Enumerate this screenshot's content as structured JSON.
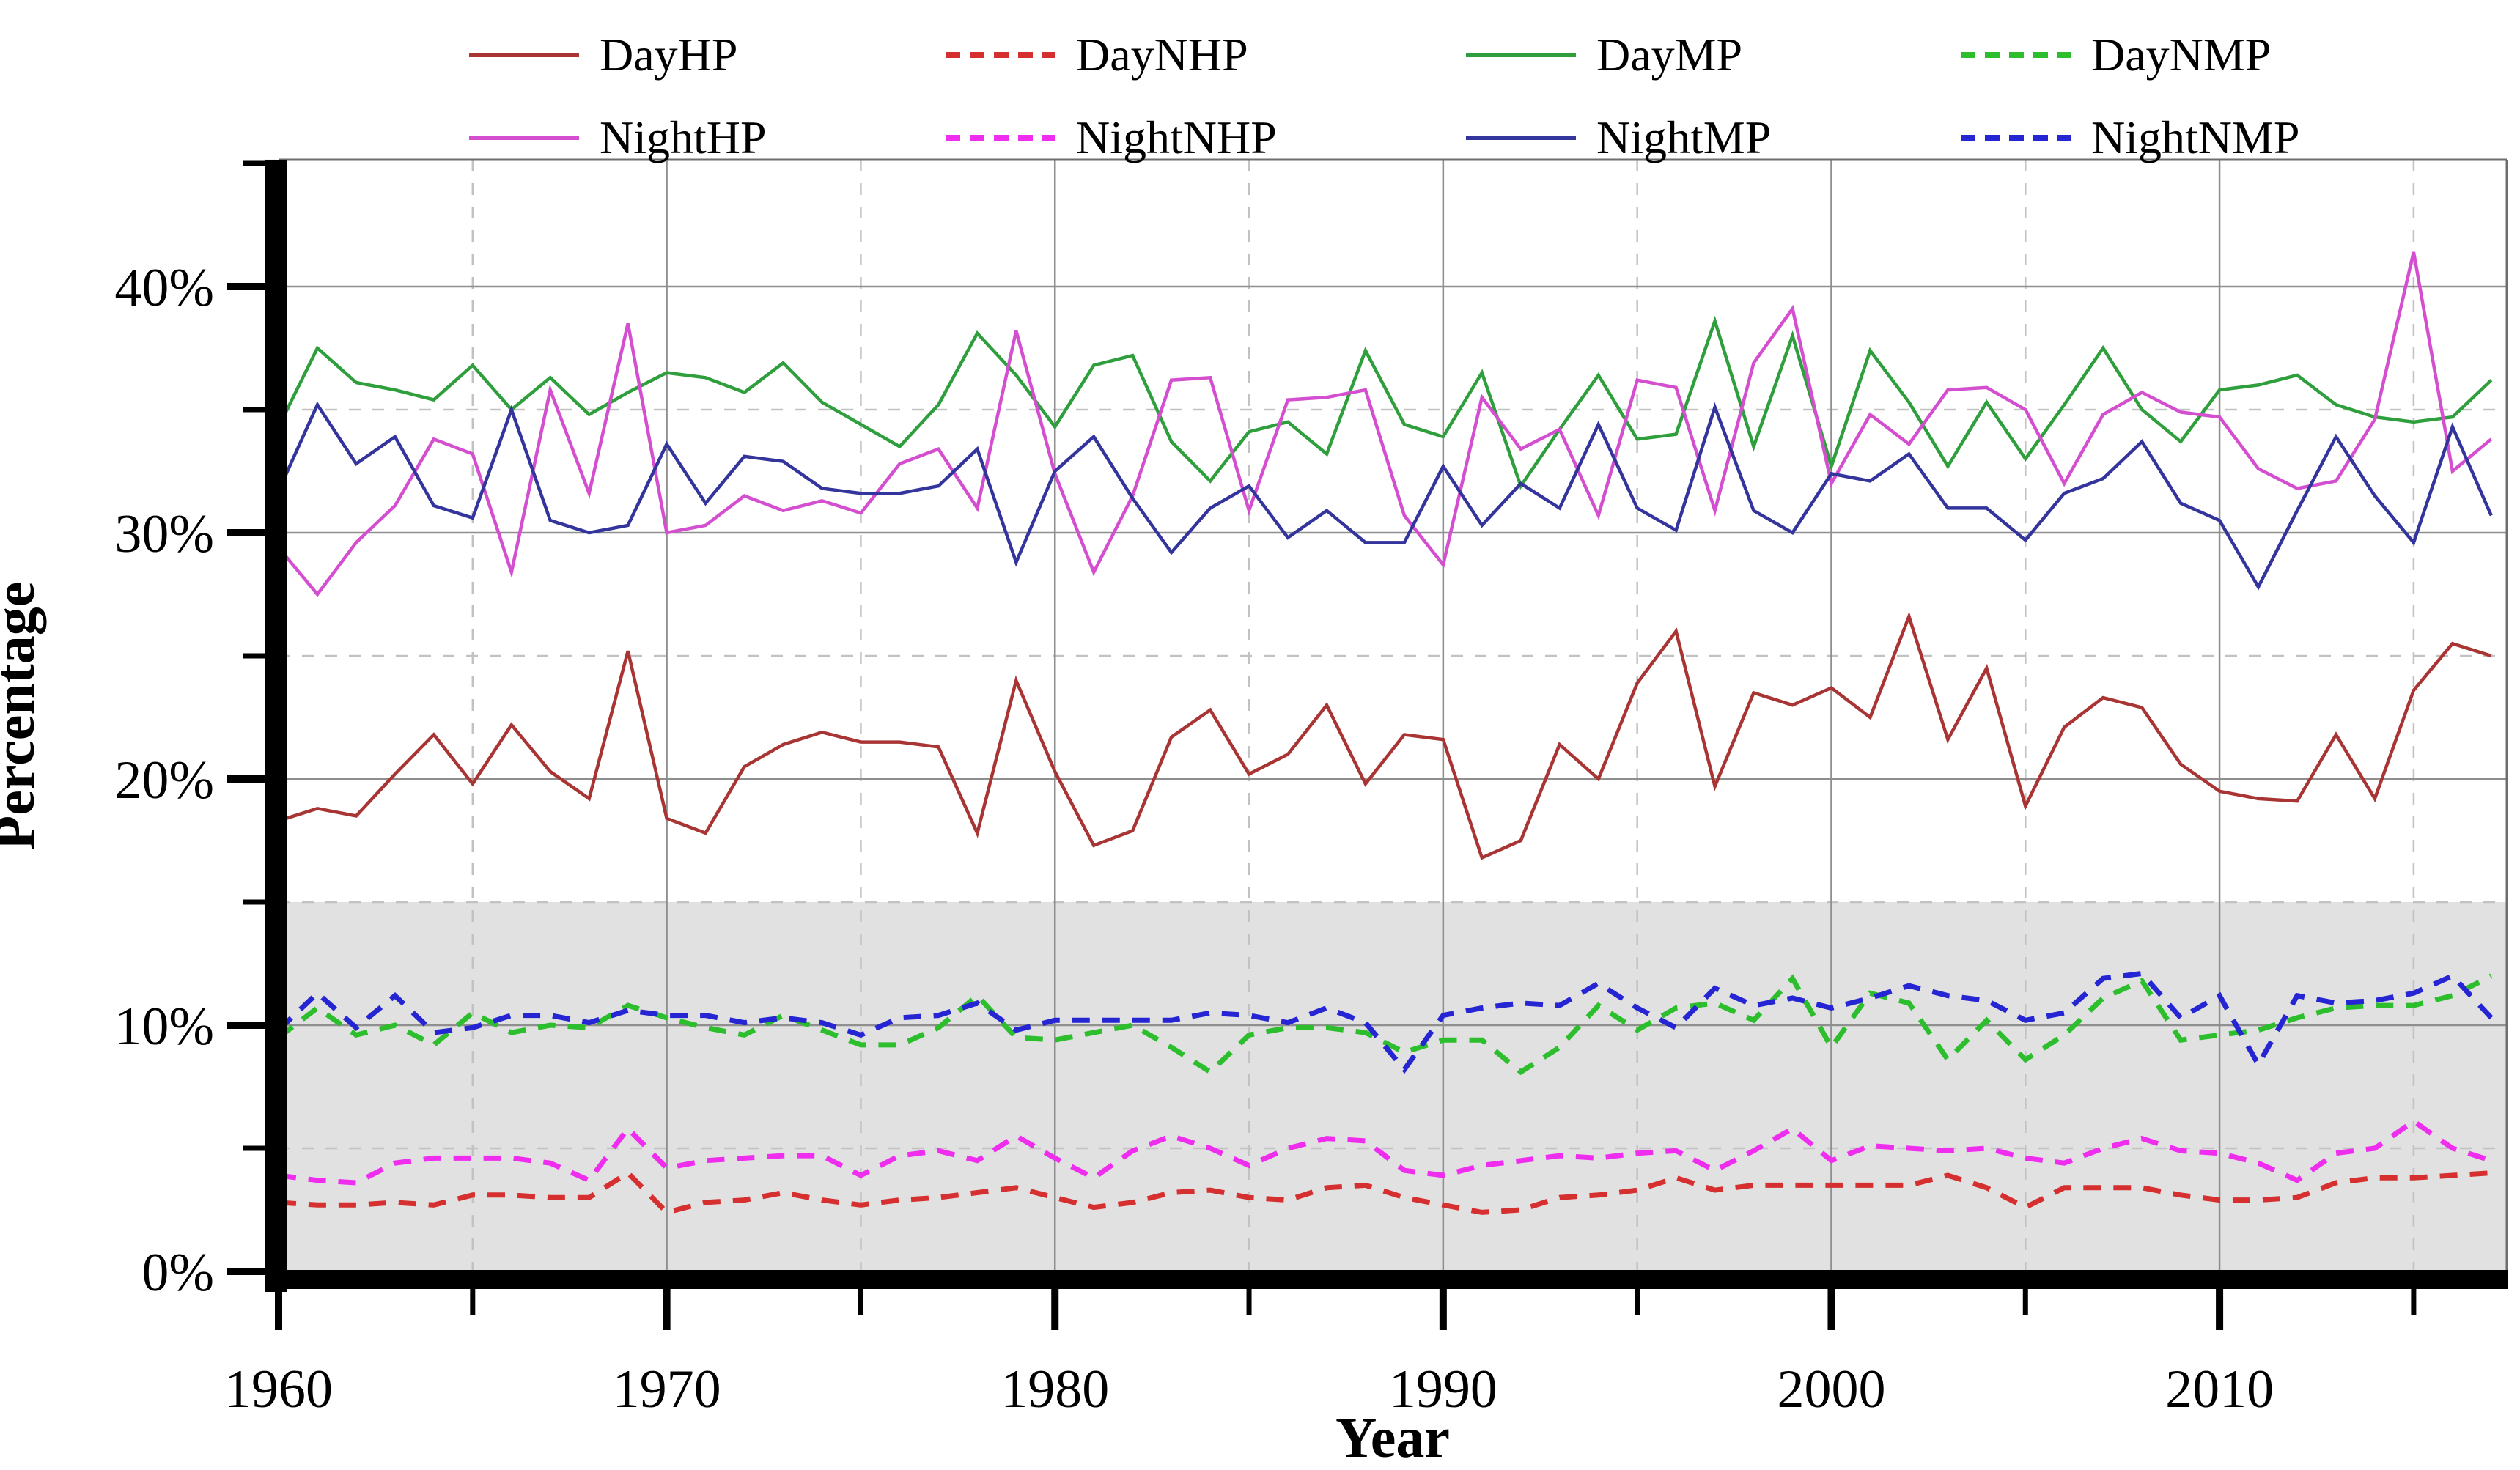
{
  "chart_data": {
    "type": "line",
    "title": "",
    "xlabel": "Year",
    "ylabel": "Percentage",
    "xlim": [
      1960,
      2017.4
    ],
    "ylim": [
      0,
      45.15
    ],
    "grid": {
      "major_horizontal": [
        10,
        20,
        30,
        40
      ],
      "minor_horizontal": [
        5,
        15,
        25,
        35
      ],
      "major_vertical": [
        1970,
        1980,
        1990,
        2000,
        2010
      ],
      "minor_vertical": [
        1965,
        1975,
        1985,
        1995,
        2005,
        2015
      ],
      "major_color": "#8f8f8f",
      "minor_color": "#c2c2c2",
      "frame_color": "#6e6e6e"
    },
    "shaded_band": {
      "from": 0,
      "to": 15,
      "color": "#e1e1e1"
    },
    "y_ticks": [
      {
        "v": 0,
        "label": "0%"
      },
      {
        "v": 10,
        "label": "10%"
      },
      {
        "v": 20,
        "label": "20%"
      },
      {
        "v": 30,
        "label": "30%"
      },
      {
        "v": 40,
        "label": "40%"
      }
    ],
    "y_ticks_minor": [
      5,
      15,
      25,
      35,
      45
    ],
    "x_ticks": [
      {
        "v": 1960,
        "label": "1960"
      },
      {
        "v": 1970,
        "label": "1970"
      },
      {
        "v": 1980,
        "label": "1980"
      },
      {
        "v": 1990,
        "label": "1990"
      },
      {
        "v": 2000,
        "label": "2000"
      },
      {
        "v": 2010,
        "label": "2010"
      }
    ],
    "x_ticks_minor": [
      1965,
      1975,
      1985,
      1995,
      2005,
      2015
    ],
    "years": [
      1960,
      1961,
      1962,
      1963,
      1964,
      1965,
      1966,
      1967,
      1968,
      1969,
      1970,
      1971,
      1972,
      1973,
      1974,
      1975,
      1976,
      1977,
      1978,
      1979,
      1980,
      1981,
      1982,
      1983,
      1984,
      1985,
      1986,
      1987,
      1988,
      1989,
      1990,
      1991,
      1992,
      1993,
      1994,
      1995,
      1996,
      1997,
      1998,
      1999,
      2000,
      2001,
      2002,
      2003,
      2004,
      2005,
      2006,
      2007,
      2008,
      2009,
      2010,
      2011,
      2012,
      2013,
      2014,
      2015,
      2016,
      2017
    ],
    "legend_rows": [
      [
        "DayHP",
        "DayNHP",
        "DayMP",
        "DayNMP"
      ],
      [
        "NightHP",
        "NightNHP",
        "NightMP",
        "NightNMP"
      ]
    ],
    "series": [
      {
        "name": "DayHP",
        "color": "#a93434",
        "style": "solid",
        "values": [
          18.3,
          18.8,
          18.5,
          20.2,
          21.8,
          19.8,
          22.2,
          20.3,
          19.2,
          25.2,
          18.4,
          17.8,
          20.5,
          21.4,
          21.9,
          21.5,
          21.5,
          21.3,
          17.8,
          24.0,
          20.3,
          17.3,
          17.9,
          21.7,
          22.8,
          20.2,
          21.0,
          23.0,
          19.8,
          21.8,
          21.6,
          16.8,
          17.5,
          21.4,
          20.0,
          23.9,
          26.0,
          19.7,
          23.5,
          23.0,
          23.7,
          22.5,
          26.6,
          21.6,
          24.5,
          18.9,
          22.1,
          23.3,
          22.9,
          20.6,
          19.5,
          19.2,
          19.1,
          21.8,
          19.2,
          23.6,
          25.5,
          25.0
        ]
      },
      {
        "name": "DayNHP",
        "color": "#d62f2f",
        "style": "dashed",
        "values": [
          2.8,
          2.7,
          2.7,
          2.8,
          2.7,
          3.1,
          3.1,
          3.0,
          3.0,
          4.0,
          2.4,
          2.8,
          2.9,
          3.2,
          2.9,
          2.7,
          2.9,
          3.0,
          3.2,
          3.4,
          3.0,
          2.6,
          2.8,
          3.2,
          3.3,
          3.0,
          2.9,
          3.4,
          3.5,
          3.0,
          2.7,
          2.4,
          2.5,
          3.0,
          3.1,
          3.3,
          3.8,
          3.3,
          3.5,
          3.5,
          3.5,
          3.5,
          3.5,
          3.9,
          3.4,
          2.6,
          3.4,
          3.4,
          3.4,
          3.1,
          2.9,
          2.9,
          3.0,
          3.6,
          3.8,
          3.8,
          3.9,
          4.0
        ]
      },
      {
        "name": "DayMP",
        "color": "#2f9e3c",
        "style": "solid",
        "values": [
          34.3,
          37.5,
          36.1,
          35.8,
          35.4,
          36.8,
          35.0,
          36.3,
          34.8,
          35.7,
          36.5,
          36.3,
          35.7,
          36.9,
          35.3,
          34.4,
          33.5,
          35.2,
          38.1,
          36.4,
          34.3,
          36.8,
          37.2,
          33.7,
          32.1,
          34.1,
          34.5,
          33.2,
          37.4,
          34.4,
          33.9,
          36.5,
          31.9,
          34.2,
          36.4,
          33.8,
          34.0,
          38.6,
          33.5,
          38.0,
          32.7,
          37.4,
          35.3,
          32.7,
          35.3,
          33.0,
          35.2,
          37.5,
          35.0,
          33.7,
          35.8,
          36.0,
          36.4,
          35.2,
          34.7,
          34.5,
          34.7,
          36.2
        ]
      },
      {
        "name": "DayNMP",
        "color": "#2cbe2c",
        "style": "dashed",
        "values": [
          9.5,
          10.7,
          9.6,
          10.0,
          9.2,
          10.5,
          9.7,
          10.0,
          9.9,
          10.8,
          10.3,
          9.9,
          9.6,
          10.4,
          9.8,
          9.2,
          9.2,
          9.9,
          11.2,
          9.5,
          9.4,
          9.7,
          10.0,
          9.1,
          8.1,
          9.6,
          9.9,
          9.9,
          9.7,
          8.9,
          9.4,
          9.4,
          8.1,
          9.1,
          10.8,
          9.8,
          10.7,
          10.9,
          10.2,
          11.9,
          9.1,
          11.3,
          10.9,
          8.6,
          10.2,
          8.6,
          9.6,
          11.1,
          11.8,
          9.4,
          9.6,
          9.8,
          10.3,
          10.7,
          10.8,
          10.8,
          11.2,
          12.0
        ]
      },
      {
        "name": "NightHP",
        "color": "#d44fcf",
        "style": "solid",
        "values": [
          29.4,
          27.5,
          29.6,
          31.1,
          33.8,
          33.2,
          28.4,
          35.8,
          31.6,
          38.5,
          30.0,
          30.3,
          31.5,
          30.9,
          31.3,
          30.8,
          32.8,
          33.4,
          31.0,
          38.2,
          32.4,
          28.4,
          31.5,
          36.2,
          36.3,
          30.9,
          35.4,
          35.5,
          35.8,
          30.7,
          28.7,
          35.5,
          33.4,
          34.2,
          30.7,
          36.2,
          35.9,
          30.9,
          36.9,
          39.1,
          32.0,
          34.8,
          33.6,
          35.8,
          35.9,
          35.0,
          32.0,
          34.8,
          35.7,
          34.9,
          34.7,
          32.6,
          31.8,
          32.1,
          34.6,
          41.4,
          32.5,
          33.8
        ]
      },
      {
        "name": "NightNHP",
        "color": "#ee2dee",
        "style": "dashed",
        "values": [
          3.9,
          3.7,
          3.6,
          4.4,
          4.6,
          4.6,
          4.6,
          4.4,
          3.7,
          5.8,
          4.2,
          4.5,
          4.6,
          4.7,
          4.7,
          3.9,
          4.7,
          4.9,
          4.5,
          5.5,
          4.6,
          3.8,
          4.9,
          5.5,
          5.0,
          4.3,
          5.0,
          5.4,
          5.3,
          4.1,
          3.9,
          4.3,
          4.5,
          4.7,
          4.6,
          4.8,
          4.9,
          4.1,
          4.9,
          5.8,
          4.5,
          5.1,
          5.0,
          4.9,
          5.0,
          4.6,
          4.4,
          5.0,
          5.4,
          4.9,
          4.8,
          4.4,
          3.7,
          4.8,
          5.0,
          6.1,
          5.0,
          4.5
        ]
      },
      {
        "name": "NightMP",
        "color": "#34349d",
        "style": "solid",
        "values": [
          31.7,
          35.2,
          32.8,
          33.9,
          31.1,
          30.6,
          35.0,
          30.5,
          30.0,
          30.3,
          33.6,
          31.2,
          33.1,
          32.9,
          31.8,
          31.6,
          31.6,
          31.9,
          33.4,
          28.8,
          32.5,
          33.9,
          31.4,
          29.2,
          31.0,
          31.9,
          29.8,
          30.9,
          29.6,
          29.6,
          32.7,
          30.3,
          32.0,
          31.0,
          34.4,
          31.0,
          30.1,
          35.1,
          30.9,
          30.0,
          32.4,
          32.1,
          33.2,
          31.0,
          31.0,
          29.7,
          31.6,
          32.2,
          33.7,
          31.2,
          30.5,
          27.8,
          30.9,
          33.9,
          31.5,
          29.6,
          34.3,
          30.7
        ]
      },
      {
        "name": "NightNMP",
        "color": "#2525d4",
        "style": "dashed",
        "values": [
          9.8,
          11.3,
          9.9,
          11.2,
          9.7,
          9.9,
          10.4,
          10.4,
          10.1,
          10.6,
          10.4,
          10.4,
          10.1,
          10.3,
          10.1,
          9.6,
          10.3,
          10.4,
          10.9,
          9.8,
          10.2,
          10.2,
          10.2,
          10.2,
          10.5,
          10.4,
          10.1,
          10.7,
          10.1,
          8.2,
          10.4,
          10.7,
          10.9,
          10.8,
          11.7,
          10.7,
          9.9,
          11.5,
          10.8,
          11.1,
          10.7,
          11.1,
          11.6,
          11.2,
          11.0,
          10.2,
          10.5,
          11.9,
          12.1,
          10.3,
          11.2,
          8.4,
          11.2,
          10.9,
          11.0,
          11.3,
          12.0,
          10.3
        ]
      }
    ]
  }
}
